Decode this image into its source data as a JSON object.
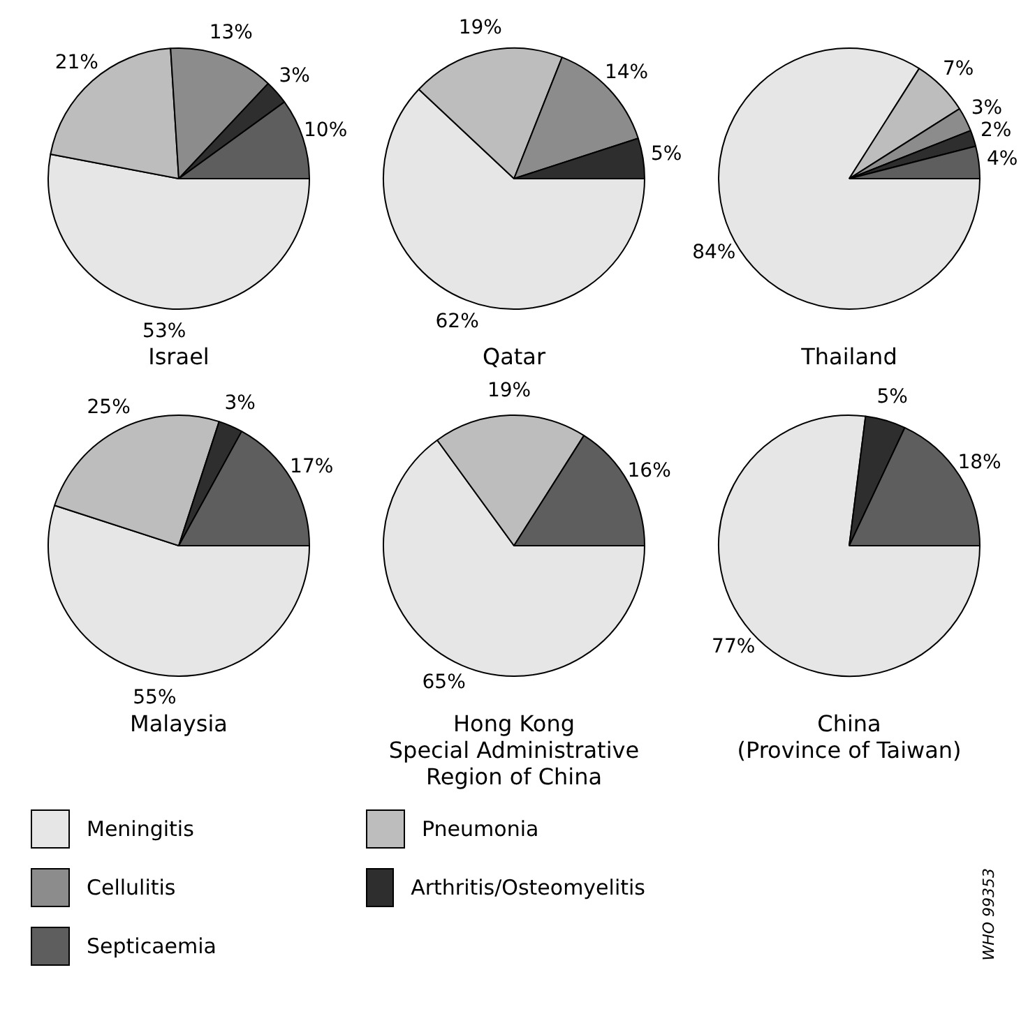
{
  "chart_data": [
    {
      "type": "pie",
      "title": "Israel",
      "categories": [
        "Meningitis",
        "Pneumonia",
        "Cellulitis",
        "Arthritis/Osteomyelitis",
        "Septicaemia"
      ],
      "values": [
        53,
        21,
        13,
        3,
        10
      ],
      "value_labels": [
        "53%",
        "21%",
        "13%",
        "3%",
        "10%"
      ],
      "colors": [
        "#e6e6e6",
        "#bdbdbd",
        "#8c8c8c",
        "#2e2e2e",
        "#5e5e5e"
      ],
      "legend": "bottom"
    },
    {
      "type": "pie",
      "title": "Qatar",
      "categories": [
        null,
        null,
        null,
        null,
        null
      ],
      "values": [
        62,
        19,
        14,
        5,
        null
      ],
      "value_labels": [
        "62%",
        "19%",
        "14%",
        "5%",
        null
      ],
      "colors": [
        "#e6e6e6",
        "#bdbdbd",
        "#8c8c8c",
        "#2e2e2e",
        "#5e5e5e"
      ]
    },
    {
      "type": "pie",
      "title": "Thailand",
      "categories": [
        null,
        null,
        null,
        null,
        null
      ],
      "values": [
        84,
        7,
        3,
        2,
        4
      ],
      "value_labels": [
        "84%",
        "7%",
        "3%",
        "2%",
        "4%"
      ],
      "colors": [
        "#e6e6e6",
        "#bdbdbd",
        "#8c8c8c",
        "#2e2e2e",
        "#5e5e5e"
      ]
    },
    {
      "type": "pie",
      "title": "Malaysia",
      "categories": [
        null,
        null,
        null,
        null,
        null
      ],
      "values": [
        55,
        25,
        null,
        3,
        17
      ],
      "value_labels": [
        "55%",
        "25%",
        null,
        "3%",
        "17%"
      ],
      "colors": [
        "#e6e6e6",
        "#bdbdbd",
        "#8c8c8c",
        "#2e2e2e",
        "#5e5e5e"
      ]
    },
    {
      "type": "pie",
      "title": "Hong Kong\nSpecial Administrative\nRegion of China",
      "categories": [
        null,
        null,
        null,
        null,
        null
      ],
      "values": [
        65,
        19,
        null,
        null,
        16
      ],
      "value_labels": [
        "65%",
        "19%",
        null,
        null,
        "16%"
      ],
      "colors": [
        "#e6e6e6",
        "#bdbdbd",
        "#8c8c8c",
        "#2e2e2e",
        "#5e5e5e"
      ]
    },
    {
      "type": "pie",
      "title": "China\n(Province of Taiwan)",
      "categories": [
        null,
        null,
        null,
        null,
        null
      ],
      "values": [
        77,
        null,
        null,
        5,
        18
      ],
      "value_labels": [
        "77%",
        null,
        null,
        "5%",
        "18%"
      ],
      "colors": [
        "#e6e6e6",
        "#bdbdbd",
        "#8c8c8c",
        "#2e2e2e",
        "#5e5e5e"
      ],
      "annotations": [
        "WHO 99353"
      ]
    }
  ]
}
